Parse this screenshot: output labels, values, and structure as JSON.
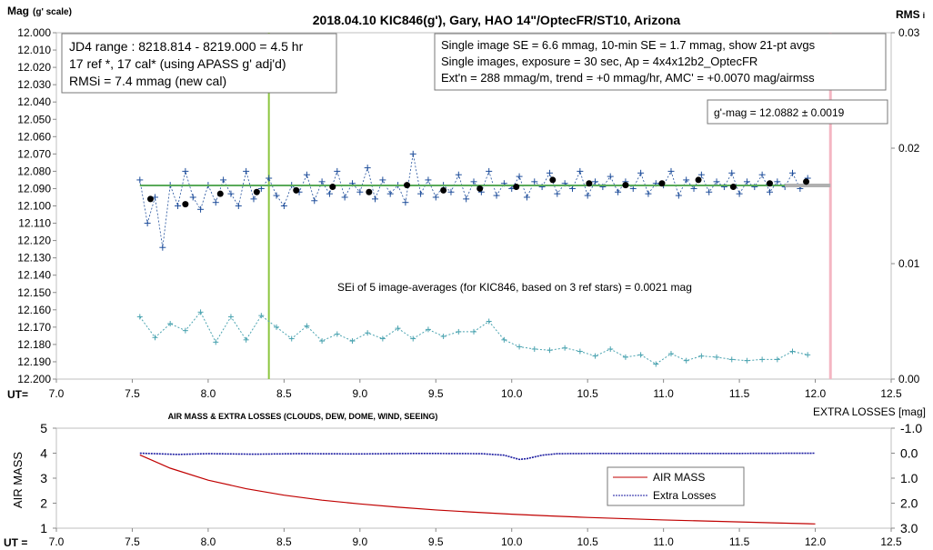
{
  "upper": {
    "title": "2018.04.10  KIC846(g'),  Gary, HAO 14\"/OptecFR/ST10,  Arizona",
    "ylabel_main": "Mag",
    "ylabel_sub": "(g' scale)",
    "y2label_main": "RMS",
    "y2label_sub": "i",
    "xlabel": "UT=",
    "infobox_left": [
      "JD4 range : 8218.814 - 8219.000 = 4.5  hr",
      "17 ref *, 17 cal* (using APASS g' adj'd)",
      "RMSi = 7.4 mmag (new cal)"
    ],
    "infobox_right": [
      "Single image SE = 6.6 mmag, 10-min SE = 1.7 mmag, show  21-pt avgs",
      "Single images, exposure = 30 sec, Ap = 4x4x12b2_OptecFR",
      "Ext'n = 288 mmag/m, trend =  +0 mmag/hr, AMC' = +0.0070 mag/airmss"
    ],
    "gmag_box": "g'-mag = 12.0882 ± 0.0019",
    "sei_note": "SEi of 5 image-averages (for KIC846, based on 3 ref stars) = 0.0021  mag"
  },
  "lower": {
    "title": "AIR MASS & EXTRA LOSSES (CLOUDS, DEW, DOME, WIND, SEEING)",
    "ylabel": "AIR MASS",
    "y2label": "EXTRA LOSSES [mag]",
    "xlabel": "UT =",
    "legend": [
      "AIR MASS",
      "Extra Losses"
    ]
  },
  "colors": {
    "points": "#1f4e9b",
    "averages": "#000000",
    "fit": "#5aaa5a",
    "rms": "#4aa3b0",
    "marker_green": "#8cc63f",
    "marker_pink": "#f4b6c2",
    "airmass": "#c00000",
    "losses": "#1a1aa0"
  },
  "chart_data": [
    {
      "type": "scatter",
      "title": "2018.04.10  KIC846(g'),  Gary, HAO 14\"/OptecFR/ST10,  Arizona",
      "xlabel": "UT=",
      "ylabel": "Mag (g' scale)",
      "y2label": "RMS i",
      "xlim": [
        7.0,
        12.5
      ],
      "ylim": [
        12.2,
        12.0
      ],
      "y_inverted": true,
      "y2lim": [
        0.0,
        0.03
      ],
      "xticks": [
        7.0,
        7.5,
        8.0,
        8.5,
        9.0,
        9.5,
        10.0,
        10.5,
        11.0,
        11.5,
        12.0,
        12.5
      ],
      "yticks": [
        12.0,
        12.01,
        12.02,
        12.03,
        12.04,
        12.05,
        12.06,
        12.07,
        12.08,
        12.09,
        12.1,
        12.11,
        12.12,
        12.13,
        12.14,
        12.15,
        12.16,
        12.17,
        12.18,
        12.19,
        12.2
      ],
      "y2ticks": [
        0.0,
        0.01,
        0.02,
        0.03
      ],
      "vertical_markers": [
        8.4,
        12.1
      ],
      "series": [
        {
          "name": "single images",
          "style": "blue crosses with dotted line",
          "x": [
            7.55,
            7.6,
            7.65,
            7.7,
            7.75,
            7.8,
            7.85,
            7.9,
            7.95,
            8.0,
            8.05,
            8.1,
            8.15,
            8.2,
            8.25,
            8.3,
            8.35,
            8.4,
            8.45,
            8.5,
            8.55,
            8.6,
            8.65,
            8.7,
            8.75,
            8.8,
            8.85,
            8.9,
            8.95,
            9.0,
            9.05,
            9.1,
            9.15,
            9.2,
            9.25,
            9.3,
            9.35,
            9.4,
            9.45,
            9.5,
            9.55,
            9.6,
            9.65,
            9.7,
            9.75,
            9.8,
            9.85,
            9.9,
            9.95,
            10.0,
            10.05,
            10.1,
            10.15,
            10.2,
            10.25,
            10.3,
            10.35,
            10.4,
            10.45,
            10.5,
            10.55,
            10.6,
            10.65,
            10.7,
            10.75,
            10.8,
            10.85,
            10.9,
            10.95,
            11.0,
            11.05,
            11.1,
            11.15,
            11.2,
            11.25,
            11.3,
            11.35,
            11.4,
            11.45,
            11.5,
            11.55,
            11.6,
            11.65,
            11.7,
            11.75,
            11.8,
            11.85,
            11.9,
            11.95
          ],
          "y": [
            12.085,
            12.11,
            12.095,
            12.124,
            12.088,
            12.1,
            12.08,
            12.095,
            12.102,
            12.088,
            12.098,
            12.085,
            12.093,
            12.1,
            12.08,
            12.096,
            12.09,
            12.084,
            12.094,
            12.1,
            12.088,
            12.092,
            12.082,
            12.097,
            12.086,
            12.093,
            12.08,
            12.095,
            12.087,
            12.092,
            12.078,
            12.096,
            12.085,
            12.093,
            12.088,
            12.098,
            12.07,
            12.093,
            12.085,
            12.095,
            12.088,
            12.092,
            12.082,
            12.096,
            12.086,
            12.092,
            12.08,
            12.094,
            12.087,
            12.09,
            12.083,
            12.095,
            12.086,
            12.089,
            12.081,
            12.093,
            12.087,
            12.09,
            12.08,
            12.094,
            12.086,
            12.089,
            12.083,
            12.092,
            12.086,
            12.09,
            12.081,
            12.093,
            12.087,
            12.088,
            12.08,
            12.094,
            12.085,
            12.09,
            12.082,
            12.092,
            12.086,
            12.089,
            12.081,
            12.093,
            12.086,
            12.089,
            12.082,
            12.092,
            12.086,
            12.089,
            12.081,
            12.09,
            12.084
          ]
        },
        {
          "name": "21-pt avgs",
          "style": "black dots",
          "x": [
            7.62,
            7.85,
            8.08,
            8.32,
            8.58,
            8.82,
            9.06,
            9.31,
            9.55,
            9.79,
            10.03,
            10.27,
            10.51,
            10.75,
            10.99,
            11.23,
            11.46,
            11.7,
            11.94
          ],
          "y": [
            12.096,
            12.099,
            12.093,
            12.092,
            12.091,
            12.089,
            12.092,
            12.088,
            12.091,
            12.09,
            12.089,
            12.085,
            12.087,
            12.088,
            12.087,
            12.085,
            12.089,
            12.087,
            12.086
          ]
        },
        {
          "name": "g'-mag fit",
          "style": "green line",
          "x": [
            7.55,
            12.0
          ],
          "y": [
            12.0882,
            12.0882
          ]
        },
        {
          "name": "RMS i",
          "style": "teal crosses on right axis",
          "axis": "y2",
          "x": [
            7.55,
            7.65,
            7.75,
            7.85,
            7.95,
            8.05,
            8.15,
            8.25,
            8.35,
            8.45,
            8.55,
            8.65,
            8.75,
            8.85,
            8.95,
            9.05,
            9.15,
            9.25,
            9.35,
            9.45,
            9.55,
            9.65,
            9.75,
            9.85,
            9.95,
            10.05,
            10.15,
            10.25,
            10.35,
            10.45,
            10.55,
            10.65,
            10.75,
            10.85,
            10.95,
            11.05,
            11.15,
            11.25,
            11.35,
            11.45,
            11.55,
            11.65,
            11.75,
            11.85,
            11.95
          ],
          "y": [
            0.0054,
            0.0036,
            0.0048,
            0.0042,
            0.0058,
            0.0032,
            0.0054,
            0.0034,
            0.0055,
            0.0045,
            0.0035,
            0.0046,
            0.0033,
            0.0039,
            0.0033,
            0.004,
            0.0035,
            0.0044,
            0.0035,
            0.0043,
            0.0037,
            0.0041,
            0.0041,
            0.005,
            0.0034,
            0.0028,
            0.0026,
            0.0025,
            0.0027,
            0.0024,
            0.002,
            0.0026,
            0.0019,
            0.0021,
            0.0013,
            0.0022,
            0.0016,
            0.002,
            0.0019,
            0.0017,
            0.0016,
            0.0017,
            0.0017,
            0.0024,
            0.0021
          ]
        }
      ]
    },
    {
      "type": "line",
      "title": "AIR MASS & EXTRA LOSSES (CLOUDS, DEW, DOME, WIND, SEEING)",
      "xlabel": "UT =",
      "ylabel": "AIR MASS",
      "y2label": "EXTRA LOSSES [mag]",
      "xlim": [
        7.0,
        12.5
      ],
      "ylim": [
        1,
        5
      ],
      "y2lim": [
        3.0,
        -1.0
      ],
      "xticks": [
        7.0,
        7.5,
        8.0,
        8.5,
        9.0,
        9.5,
        10.0,
        10.5,
        11.0,
        11.5,
        12.0,
        12.5
      ],
      "yticks": [
        1,
        2,
        3,
        4,
        5
      ],
      "y2ticks": [
        -1.0,
        0.0,
        1.0,
        2.0,
        3.0
      ],
      "y2ticklabels": [
        "-1.0",
        "0.0",
        "1.0",
        "2.0",
        "3.0"
      ],
      "legend_position": "lower-right",
      "series": [
        {
          "name": "AIR MASS",
          "axis": "y",
          "x": [
            7.55,
            7.75,
            8.0,
            8.25,
            8.5,
            8.75,
            9.0,
            9.25,
            9.5,
            9.75,
            10.0,
            10.25,
            10.5,
            10.75,
            11.0,
            11.25,
            11.5,
            11.75,
            12.0
          ],
          "y": [
            3.93,
            3.4,
            2.92,
            2.58,
            2.32,
            2.12,
            1.97,
            1.84,
            1.73,
            1.64,
            1.56,
            1.49,
            1.43,
            1.38,
            1.33,
            1.29,
            1.25,
            1.21,
            1.17
          ]
        },
        {
          "name": "Extra Losses",
          "axis": "y2",
          "x": [
            7.55,
            7.8,
            8.0,
            8.3,
            8.6,
            9.0,
            9.4,
            9.8,
            9.95,
            10.05,
            10.1,
            10.2,
            10.3,
            10.6,
            11.0,
            11.5,
            12.0
          ],
          "y": [
            0.0,
            0.05,
            0.02,
            0.04,
            0.02,
            0.03,
            0.01,
            0.02,
            0.08,
            0.25,
            0.22,
            0.08,
            0.02,
            0.01,
            0.01,
            0.01,
            0.0
          ]
        }
      ]
    }
  ]
}
